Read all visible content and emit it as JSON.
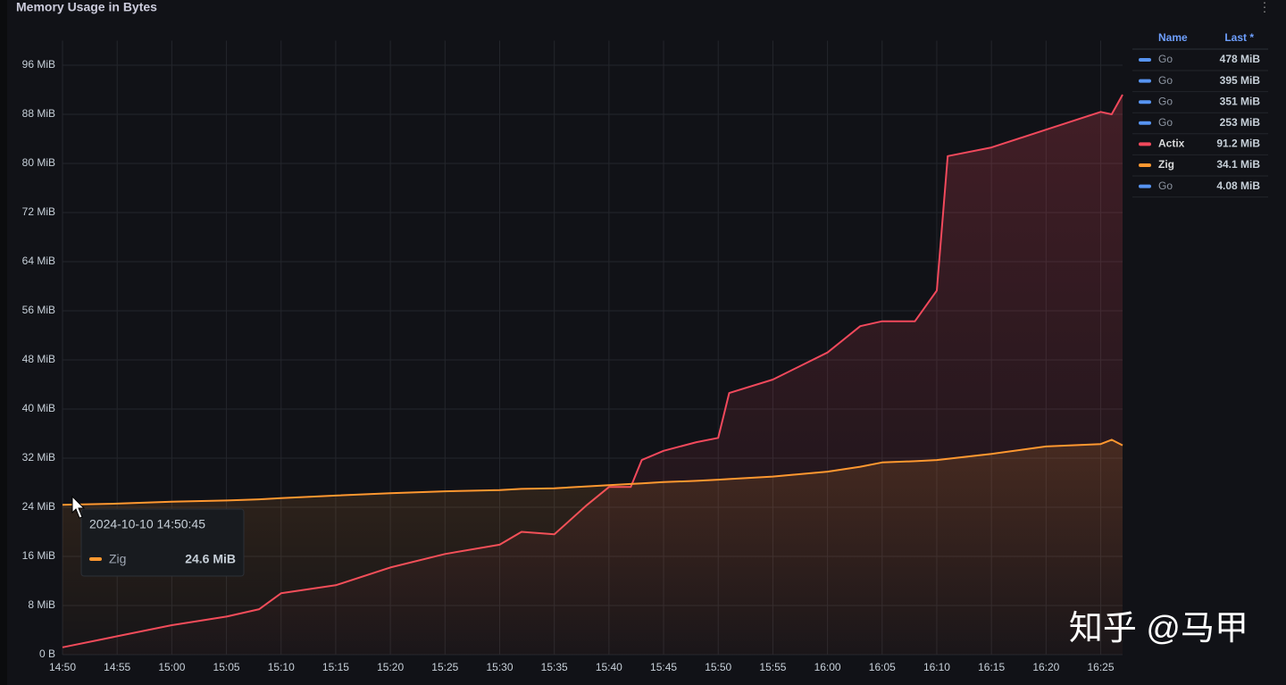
{
  "panel_title": "Memory Usage in Bytes",
  "chart_data": {
    "type": "line",
    "x": [
      "14:50",
      "14:55",
      "15:00",
      "15:05",
      "15:08",
      "15:10",
      "15:15",
      "15:20",
      "15:25",
      "15:30",
      "15:32",
      "15:35",
      "15:38",
      "15:40",
      "15:42",
      "15:43",
      "15:45",
      "15:48",
      "15:50",
      "15:51",
      "15:55",
      "16:00",
      "16:03",
      "16:05",
      "16:08",
      "16:10",
      "16:11",
      "16:15",
      "16:20",
      "16:25",
      "16:26",
      "16:27"
    ],
    "series": [
      {
        "name": "Actix",
        "color": "#f2495c",
        "values": [
          1.2,
          3,
          4.8,
          6.2,
          7.4,
          10,
          11.3,
          14.2,
          16.4,
          17.9,
          20,
          19.6,
          24.4,
          27.3,
          27.3,
          31.7,
          33.2,
          34.6,
          35.3,
          42.6,
          44.8,
          49.2,
          53.5,
          54.3,
          54.3,
          59.3,
          81.2,
          82.6,
          85.5,
          88.4,
          88,
          91.2
        ]
      },
      {
        "name": "Zig",
        "color": "#ff9830",
        "values": [
          24.4,
          24.6,
          24.9,
          25.1,
          25.3,
          25.5,
          25.9,
          26.3,
          26.6,
          26.8,
          27,
          27.1,
          27.4,
          27.6,
          27.8,
          27.9,
          28.1,
          28.3,
          28.5,
          28.6,
          29,
          29.8,
          30.6,
          31.3,
          31.5,
          31.7,
          31.9,
          32.7,
          33.9,
          34.3,
          35,
          34.1
        ]
      }
    ],
    "xlim": [
      "14:50",
      "16:27"
    ],
    "xticks": [
      "14:50",
      "14:55",
      "15:00",
      "15:05",
      "15:10",
      "15:15",
      "15:20",
      "15:25",
      "15:30",
      "15:35",
      "15:40",
      "15:45",
      "15:50",
      "15:55",
      "16:00",
      "16:05",
      "16:10",
      "16:15",
      "16:20",
      "16:25"
    ],
    "ylim": [
      0,
      100
    ],
    "yticks": [
      {
        "value": 0,
        "label": "0 B"
      },
      {
        "value": 8,
        "label": "8 MiB"
      },
      {
        "value": 16,
        "label": "16 MiB"
      },
      {
        "value": 24,
        "label": "24 MiB"
      },
      {
        "value": 32,
        "label": "32 MiB"
      },
      {
        "value": 40,
        "label": "40 MiB"
      },
      {
        "value": 48,
        "label": "48 MiB"
      },
      {
        "value": 56,
        "label": "56 MiB"
      },
      {
        "value": 64,
        "label": "64 MiB"
      },
      {
        "value": 72,
        "label": "72 MiB"
      },
      {
        "value": 80,
        "label": "80 MiB"
      },
      {
        "value": 88,
        "label": "88 MiB"
      },
      {
        "value": 96,
        "label": "96 MiB"
      }
    ],
    "grid": true
  },
  "legend": {
    "headers": [
      "Name",
      "Last *"
    ],
    "rows": [
      {
        "name": "Go",
        "color": "#5794f2",
        "last": "478 MiB"
      },
      {
        "name": "Go",
        "color": "#5794f2",
        "last": "395 MiB"
      },
      {
        "name": "Go",
        "color": "#5794f2",
        "last": "351 MiB"
      },
      {
        "name": "Go",
        "color": "#5794f2",
        "last": "253 MiB"
      },
      {
        "name": "Actix",
        "color": "#f2495c",
        "last": "91.2 MiB"
      },
      {
        "name": "Zig",
        "color": "#ff9830",
        "last": "34.1 MiB"
      },
      {
        "name": "Go",
        "color": "#5794f2",
        "last": "4.08 MiB"
      }
    ]
  },
  "tooltip": {
    "time": "2024-10-10 14:50:45",
    "series": "Zig",
    "color": "#ff9830",
    "value": "24.6 MiB"
  },
  "watermark": "知乎 @马甲"
}
